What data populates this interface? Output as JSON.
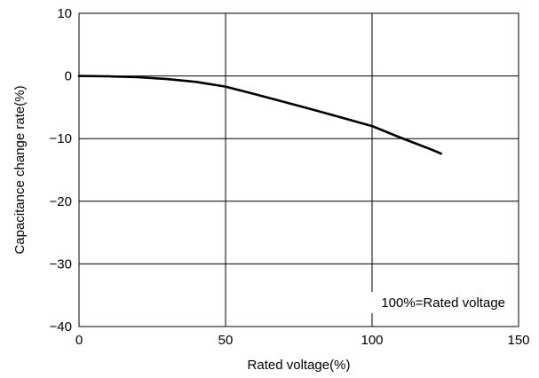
{
  "chart_data": {
    "type": "line",
    "title": "",
    "xlabel": "Rated voltage(%)",
    "ylabel": "Capacitance change rate(%)",
    "xlim": [
      0,
      150
    ],
    "ylim": [
      -40,
      10
    ],
    "x_ticks": [
      0,
      50,
      100,
      150
    ],
    "y_ticks": [
      10,
      0,
      -10,
      -20,
      -30,
      -40
    ],
    "x_tick_labels": [
      "0",
      "50",
      "100",
      "150"
    ],
    "y_tick_labels": [
      "10",
      "0",
      "−10",
      "−20",
      "−30",
      "−40"
    ],
    "grid": true,
    "annotation": "100%=Rated voltage",
    "series": [
      {
        "color": "#000000",
        "x": [
          0,
          10,
          20,
          30,
          40,
          50,
          60,
          70,
          80,
          90,
          100,
          110,
          120,
          123.5
        ],
        "y": [
          0,
          -0.05,
          -0.2,
          -0.5,
          -0.95,
          -1.7,
          -2.9,
          -4.15,
          -5.4,
          -6.7,
          -8.0,
          -9.9,
          -11.7,
          -12.4
        ]
      }
    ]
  }
}
